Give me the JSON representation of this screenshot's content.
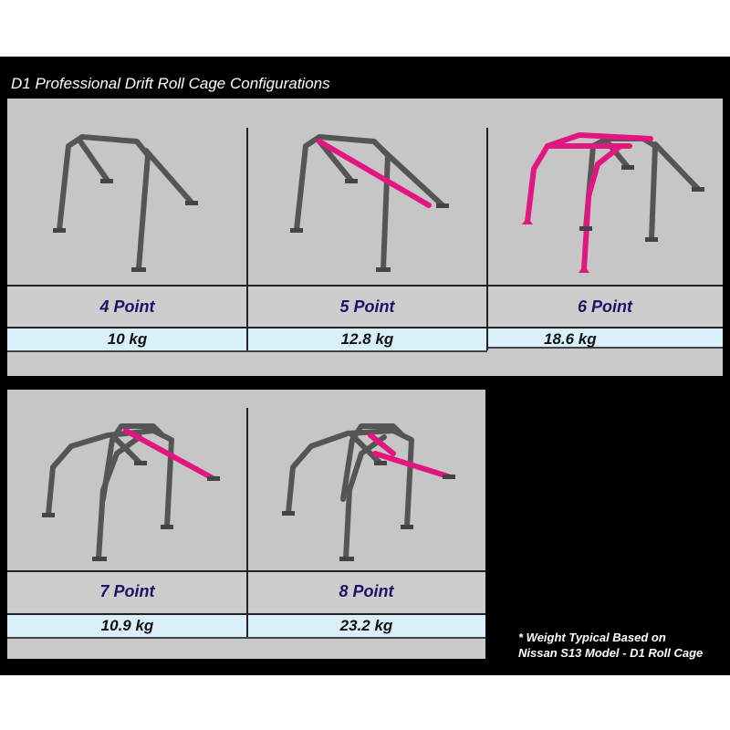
{
  "title": "D1 Professional Drift Roll Cage Configurations",
  "configurations": [
    {
      "label": "4 Point",
      "weight": "10 kg"
    },
    {
      "label": "5 Point",
      "weight": "12.8 kg"
    },
    {
      "label": "6 Point",
      "weight": "18.6 kg"
    },
    {
      "label": "7 Point",
      "weight": "10.9 kg"
    },
    {
      "label": "8 Point",
      "weight": "23.2 kg"
    }
  ],
  "note": {
    "line1": "* Weight Typical Based on",
    "line2": "Nissan S13 Model - D1 Roll Cage"
  },
  "colors": {
    "cage": "#555555",
    "highlight_bar": "#e2167f",
    "label_text": "#1b1466",
    "weight_row": "#d9f0fb"
  }
}
